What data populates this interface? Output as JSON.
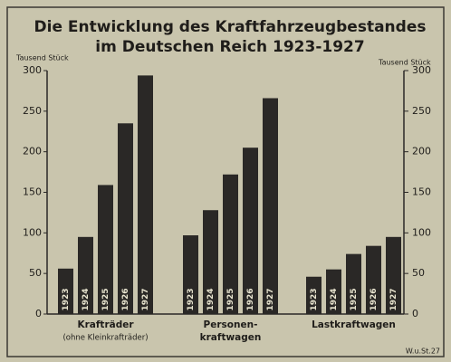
{
  "chart_data": {
    "type": "bar",
    "title": [
      "Die Entwicklung des Kraftfahrzeugbestandes",
      "im Deutschen Reich 1923-1927"
    ],
    "y_label": "Tausend Stück",
    "y2_label": "Tausend Stück",
    "categories": [
      [
        "Krafträder",
        "(ohne Kleinkrafträder)"
      ],
      [
        "Personen-",
        "kraftwagen"
      ],
      [
        "Lastkraftwagen"
      ]
    ],
    "series": [
      {
        "name": "1923",
        "color": "#2a2826",
        "values": [
          56,
          97,
          46
        ]
      },
      {
        "name": "1924",
        "color": "#2a2826",
        "values": [
          95,
          128,
          55
        ]
      },
      {
        "name": "1925",
        "color": "#2a2826",
        "values": [
          159,
          172,
          74
        ]
      },
      {
        "name": "1926",
        "color": "#2a2826",
        "values": [
          235,
          205,
          84
        ]
      },
      {
        "name": "1927",
        "color": "#2a2826",
        "values": [
          294,
          266,
          95
        ]
      }
    ],
    "ylim": [
      0,
      300
    ],
    "yticks": [
      0,
      50,
      100,
      150,
      200,
      250,
      300
    ],
    "y2lim": [
      0,
      300
    ],
    "y2ticks": [
      0,
      50,
      100,
      150,
      200,
      250,
      300
    ],
    "source": "W.u.St.27"
  }
}
